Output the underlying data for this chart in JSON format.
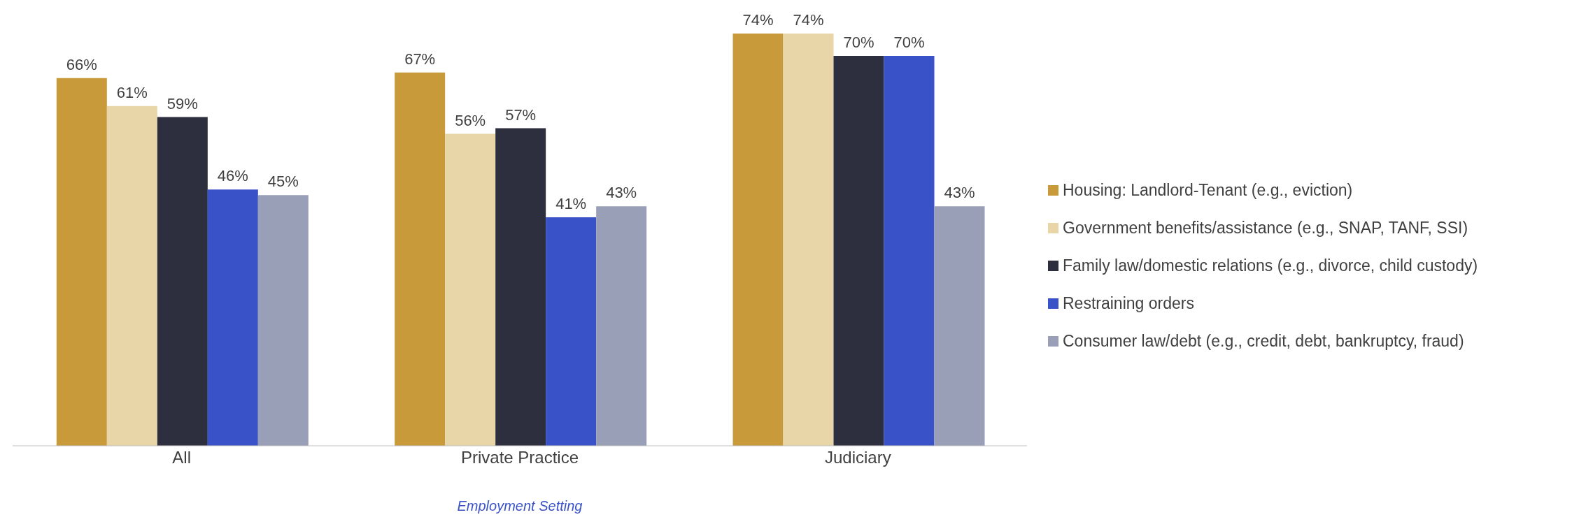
{
  "chart_data": {
    "type": "bar",
    "xlabel": "Employment Setting",
    "categories": [
      "All",
      "Private Practice",
      "Judiciary"
    ],
    "series": [
      {
        "name": "Housing: Landlord-Tenant (e.g., eviction)",
        "color": "#c99a3a",
        "values": [
          66,
          67,
          74
        ],
        "value_labels": [
          "66%",
          "67%",
          "74%"
        ]
      },
      {
        "name": "Government benefits/assistance (e.g., SNAP, TANF, SSI)",
        "color": "#e8d5a8",
        "values": [
          61,
          56,
          74
        ],
        "value_labels": [
          "61%",
          "56%",
          "74%"
        ]
      },
      {
        "name": "Family law/domestic relations (e.g., divorce, child custody)",
        "color": "#2d2f3f",
        "values": [
          59,
          57,
          70
        ],
        "value_labels": [
          "59%",
          "57%",
          "70%"
        ]
      },
      {
        "name": "Restraining orders",
        "color": "#3a52c8",
        "values": [
          46,
          41,
          70
        ],
        "value_labels": [
          "46%",
          "41%",
          "70%"
        ]
      },
      {
        "name": "Consumer law/debt (e.g., credit, debt, bankruptcy, fraud)",
        "color": "#9a9fb8",
        "values": [
          45,
          43,
          43
        ],
        "value_labels": [
          "45%",
          "43%",
          "43%"
        ]
      }
    ],
    "legend": "right",
    "grid": false,
    "tick_labels": "x"
  }
}
